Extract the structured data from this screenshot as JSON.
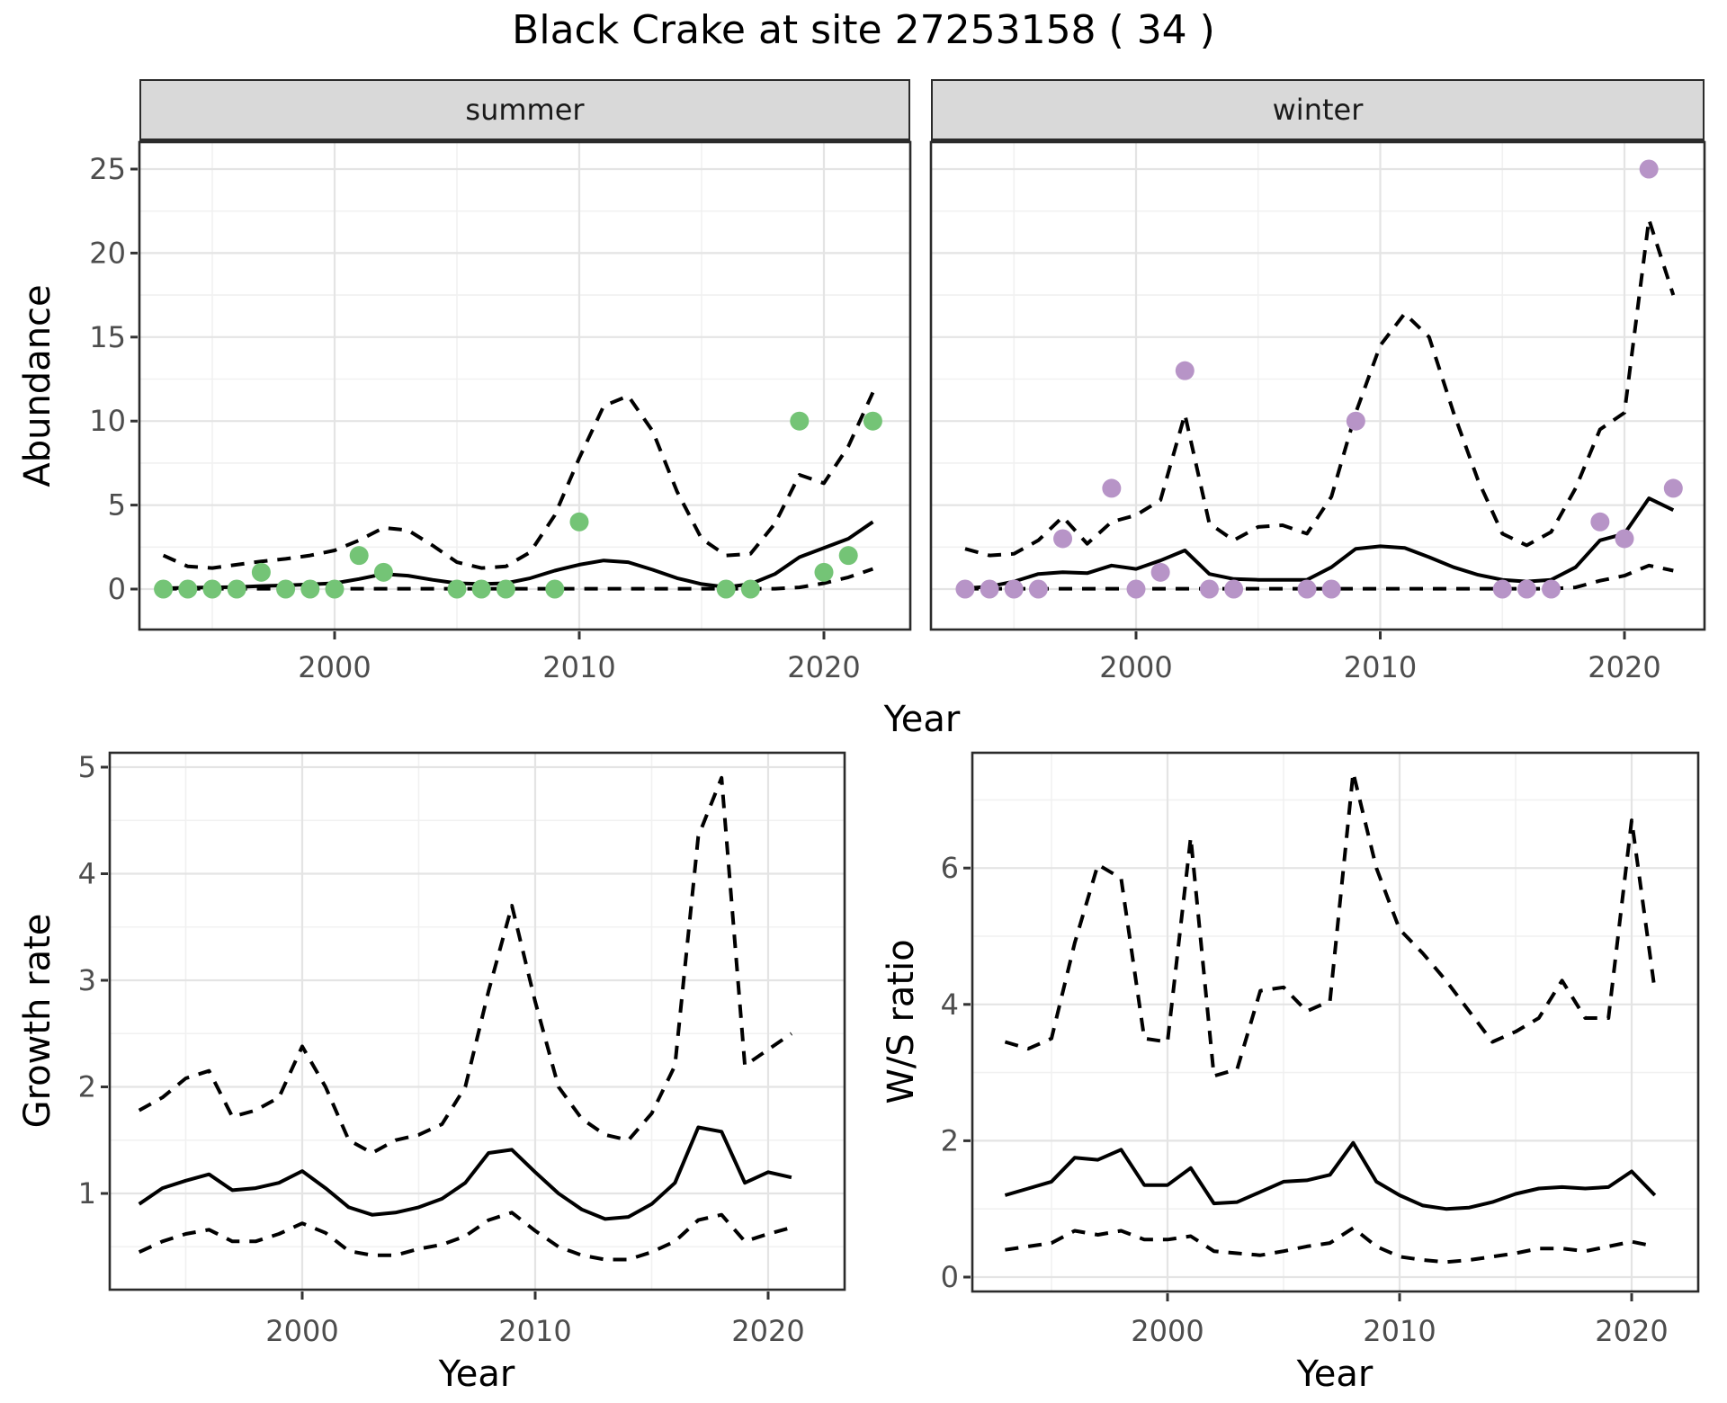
{
  "title": "Black Crake at site 27253158 ( 34 )",
  "facets": {
    "summer_label": "summer",
    "winter_label": "winter"
  },
  "axes": {
    "abundance_label": "Abundance",
    "year_label": "Year",
    "growth_label": "Growth rate",
    "ws_label": "W/S ratio"
  },
  "colors": {
    "summer_point": "#74C476",
    "winter_point": "#B794C7",
    "line": "#000000",
    "strip_bg": "#D9D9D9",
    "panel_border": "#2B2B2B",
    "grid_major": "#E4E4E4",
    "grid_minor": "#F1F1F1",
    "tick_text": "#4D4D4D"
  },
  "chart_data": [
    {
      "id": "abundance-summer",
      "type": "line",
      "facet": "summer",
      "ylabel": "Abundance",
      "xlabel": "Year",
      "ylim": [
        0,
        26
      ],
      "yticks": [
        0,
        5,
        10,
        15,
        20,
        25
      ],
      "ytick_minor": [
        2.5,
        7.5,
        12.5,
        17.5,
        22.5
      ],
      "xticks": [
        2000,
        2010,
        2020
      ],
      "xtick_minor": [
        1995,
        2005,
        2015
      ],
      "x_years": [
        1993,
        1994,
        1995,
        1996,
        1997,
        1998,
        1999,
        2000,
        2001,
        2002,
        2003,
        2004,
        2005,
        2006,
        2007,
        2008,
        2009,
        2010,
        2011,
        2012,
        2013,
        2014,
        2015,
        2016,
        2017,
        2018,
        2019,
        2020,
        2021,
        2022
      ],
      "fit": [
        0.05,
        0.08,
        0.1,
        0.12,
        0.18,
        0.22,
        0.28,
        0.35,
        0.6,
        0.9,
        0.8,
        0.55,
        0.35,
        0.3,
        0.35,
        0.65,
        1.1,
        1.45,
        1.7,
        1.6,
        1.15,
        0.65,
        0.3,
        0.12,
        0.3,
        0.9,
        1.9,
        2.45,
        3.0,
        4.0
      ],
      "hi": [
        2.0,
        1.35,
        1.25,
        1.45,
        1.65,
        1.8,
        2.0,
        2.3,
        2.9,
        3.65,
        3.5,
        2.6,
        1.6,
        1.25,
        1.35,
        2.2,
        4.4,
        7.8,
        10.9,
        11.5,
        9.4,
        5.8,
        3.0,
        2.0,
        2.1,
        3.9,
        6.8,
        6.3,
        8.5,
        11.7
      ],
      "lo": [
        0.02,
        0.02,
        0.02,
        0.02,
        0.02,
        0.02,
        0.02,
        0.02,
        0.02,
        0.02,
        0.02,
        0.02,
        0.02,
        0.02,
        0.02,
        0.02,
        0.02,
        0.02,
        0.02,
        0.02,
        0.02,
        0.02,
        0.02,
        0.02,
        0.02,
        0.02,
        0.1,
        0.35,
        0.7,
        1.2
      ],
      "points": [
        [
          1993,
          0
        ],
        [
          1994,
          0
        ],
        [
          1995,
          0
        ],
        [
          1996,
          0
        ],
        [
          1997,
          1
        ],
        [
          1998,
          0
        ],
        [
          1999,
          0
        ],
        [
          2000,
          0
        ],
        [
          2001,
          2
        ],
        [
          2002,
          1
        ],
        [
          2005,
          0
        ],
        [
          2006,
          0
        ],
        [
          2007,
          0
        ],
        [
          2009,
          0
        ],
        [
          2010,
          4
        ],
        [
          2016,
          0
        ],
        [
          2017,
          0
        ],
        [
          2019,
          10
        ],
        [
          2020,
          1
        ],
        [
          2021,
          2
        ],
        [
          2022,
          10
        ]
      ],
      "point_color": "#74C476"
    },
    {
      "id": "abundance-winter",
      "type": "line",
      "facet": "winter",
      "ylabel": "Abundance",
      "xlabel": "Year",
      "ylim": [
        0,
        26
      ],
      "yticks": [
        0,
        5,
        10,
        15,
        20,
        25
      ],
      "ytick_minor": [
        2.5,
        7.5,
        12.5,
        17.5,
        22.5
      ],
      "xticks": [
        2000,
        2010,
        2020
      ],
      "xtick_minor": [
        1995,
        2005,
        2015
      ],
      "x_years": [
        1993,
        1994,
        1995,
        1996,
        1997,
        1998,
        1999,
        2000,
        2001,
        2002,
        2003,
        2004,
        2005,
        2006,
        2007,
        2008,
        2009,
        2010,
        2011,
        2012,
        2013,
        2014,
        2015,
        2016,
        2017,
        2018,
        2019,
        2020,
        2021,
        2022
      ],
      "fit": [
        0.05,
        0.15,
        0.45,
        0.9,
        1.0,
        0.95,
        1.4,
        1.2,
        1.7,
        2.3,
        0.9,
        0.6,
        0.55,
        0.55,
        0.55,
        1.3,
        2.4,
        2.55,
        2.45,
        1.9,
        1.3,
        0.85,
        0.55,
        0.45,
        0.55,
        1.3,
        2.9,
        3.3,
        5.4,
        4.7
      ],
      "hi": [
        2.4,
        2.0,
        2.1,
        2.9,
        4.3,
        2.7,
        4.0,
        4.4,
        5.3,
        10.4,
        3.9,
        2.9,
        3.7,
        3.8,
        3.3,
        5.5,
        10.5,
        14.5,
        16.4,
        15.0,
        10.5,
        6.5,
        3.3,
        2.6,
        3.4,
        6.0,
        9.5,
        10.5,
        22.0,
        17.5
      ],
      "lo": [
        0.02,
        0.02,
        0.02,
        0.02,
        0.02,
        0.02,
        0.02,
        0.02,
        0.02,
        0.02,
        0.02,
        0.02,
        0.02,
        0.02,
        0.02,
        0.02,
        0.02,
        0.02,
        0.02,
        0.02,
        0.02,
        0.02,
        0.02,
        0.02,
        0.02,
        0.1,
        0.5,
        0.8,
        1.4,
        1.1
      ],
      "points": [
        [
          1993,
          0
        ],
        [
          1994,
          0
        ],
        [
          1995,
          0
        ],
        [
          1996,
          0
        ],
        [
          1997,
          3
        ],
        [
          1999,
          6
        ],
        [
          2000,
          0
        ],
        [
          2001,
          1
        ],
        [
          2002,
          13
        ],
        [
          2003,
          0
        ],
        [
          2004,
          0
        ],
        [
          2007,
          0
        ],
        [
          2008,
          0
        ],
        [
          2009,
          10
        ],
        [
          2015,
          0
        ],
        [
          2016,
          0
        ],
        [
          2017,
          0
        ],
        [
          2019,
          4
        ],
        [
          2020,
          3
        ],
        [
          2021,
          25
        ],
        [
          2022,
          6
        ]
      ],
      "point_color": "#B794C7"
    },
    {
      "id": "growth-rate",
      "type": "line",
      "ylabel": "Growth rate",
      "xlabel": "Year",
      "ylim": [
        0.1,
        5.1
      ],
      "yticks": [
        1,
        2,
        3,
        4,
        5
      ],
      "ytick_minor": [
        0.5,
        1.5,
        2.5,
        3.5,
        4.5
      ],
      "xticks": [
        2000,
        2010,
        2020
      ],
      "xtick_minor": [
        1995,
        2005,
        2015
      ],
      "x_years": [
        1993,
        1994,
        1995,
        1996,
        1997,
        1998,
        1999,
        2000,
        2001,
        2002,
        2003,
        2004,
        2005,
        2006,
        2007,
        2008,
        2009,
        2010,
        2011,
        2012,
        2013,
        2014,
        2015,
        2016,
        2017,
        2018,
        2019,
        2020,
        2021
      ],
      "fit": [
        0.9,
        1.05,
        1.12,
        1.18,
        1.03,
        1.05,
        1.1,
        1.21,
        1.05,
        0.87,
        0.8,
        0.82,
        0.87,
        0.95,
        1.1,
        1.38,
        1.41,
        1.2,
        1.0,
        0.85,
        0.76,
        0.78,
        0.9,
        1.1,
        1.62,
        1.58,
        1.1,
        1.2,
        1.15
      ],
      "hi": [
        1.78,
        1.9,
        2.08,
        2.15,
        1.72,
        1.78,
        1.9,
        2.38,
        2.0,
        1.5,
        1.38,
        1.5,
        1.55,
        1.65,
        2.0,
        2.9,
        3.7,
        2.8,
        2.0,
        1.7,
        1.55,
        1.5,
        1.75,
        2.2,
        4.35,
        4.9,
        2.2,
        2.35,
        2.5
      ],
      "lo": [
        0.45,
        0.55,
        0.62,
        0.66,
        0.55,
        0.55,
        0.62,
        0.72,
        0.63,
        0.46,
        0.42,
        0.42,
        0.48,
        0.52,
        0.6,
        0.75,
        0.82,
        0.65,
        0.5,
        0.42,
        0.38,
        0.38,
        0.45,
        0.55,
        0.75,
        0.8,
        0.55,
        0.62,
        0.68
      ],
      "points": [],
      "point_color": "#000000"
    },
    {
      "id": "ws-ratio",
      "type": "line",
      "ylabel": "W/S ratio",
      "xlabel": "Year",
      "ylim": [
        -0.2,
        7.7
      ],
      "yticks": [
        0,
        2,
        4,
        6
      ],
      "ytick_minor": [
        1,
        3,
        5,
        7
      ],
      "xticks": [
        2000,
        2010,
        2020
      ],
      "xtick_minor": [
        1995,
        2005,
        2015
      ],
      "x_years": [
        1993,
        1994,
        1995,
        1996,
        1997,
        1998,
        1999,
        2000,
        2001,
        2002,
        2003,
        2004,
        2005,
        2006,
        2007,
        2008,
        2009,
        2010,
        2011,
        2012,
        2013,
        2014,
        2015,
        2016,
        2017,
        2018,
        2019,
        2020,
        2021
      ],
      "fit": [
        1.2,
        1.3,
        1.4,
        1.75,
        1.72,
        1.87,
        1.35,
        1.35,
        1.6,
        1.08,
        1.1,
        1.25,
        1.4,
        1.42,
        1.5,
        1.97,
        1.4,
        1.2,
        1.05,
        1.0,
        1.02,
        1.1,
        1.22,
        1.3,
        1.32,
        1.3,
        1.32,
        1.55,
        1.2
      ],
      "hi": [
        3.45,
        3.35,
        3.5,
        4.9,
        6.05,
        5.85,
        3.5,
        3.45,
        6.45,
        2.95,
        3.05,
        4.2,
        4.25,
        3.9,
        4.05,
        7.4,
        6.0,
        5.1,
        4.75,
        4.35,
        3.9,
        3.45,
        3.6,
        3.8,
        4.35,
        3.8,
        3.8,
        6.7,
        4.2
      ],
      "lo": [
        0.4,
        0.45,
        0.5,
        0.68,
        0.62,
        0.68,
        0.55,
        0.55,
        0.6,
        0.38,
        0.35,
        0.32,
        0.38,
        0.45,
        0.5,
        0.72,
        0.45,
        0.3,
        0.25,
        0.22,
        0.25,
        0.3,
        0.35,
        0.42,
        0.42,
        0.38,
        0.45,
        0.52,
        0.45
      ],
      "points": [],
      "point_color": "#000000"
    }
  ]
}
